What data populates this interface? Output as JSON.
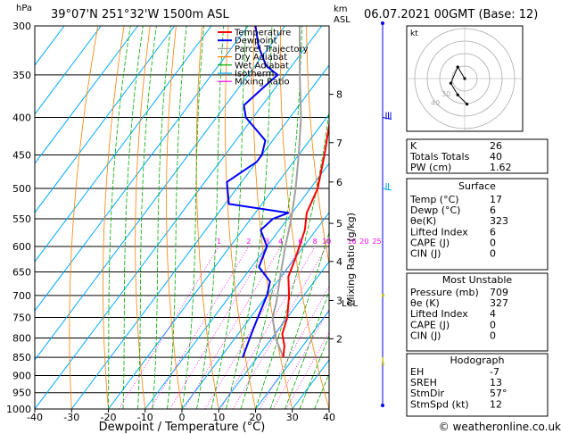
{
  "header": {
    "pressure_unit": "hPa",
    "location": "39°07'N  251°32'W  1500m  ASL",
    "height_unit": "km",
    "height_unit2": "ASL",
    "datetime": "06.07.2021  00GMT  (Base: 12)"
  },
  "legend": [
    {
      "label": "Temperature",
      "color": "#ff0000"
    },
    {
      "label": "Dewpoint",
      "color": "#0000ff"
    },
    {
      "label": "Parcel Trajectory",
      "color": "#a0a0a0"
    },
    {
      "label": "Dry Adiabat",
      "color": "#ff8000"
    },
    {
      "label": "Wet Adiabat",
      "color": "#00aa00"
    },
    {
      "label": "Isotherm",
      "color": "#00aaff"
    },
    {
      "label": "Mixing Ratio",
      "color": "#ff00ff"
    }
  ],
  "colors": {
    "temperature": "#ff0000",
    "dewpoint": "#0000ff",
    "parcel": "#a0a0a0",
    "dry_adiabat": "#ff8000",
    "wet_adiabat": "#00aa00",
    "isotherm": "#00aaff",
    "mixing_ratio": "#ff00ff",
    "wind": "#0000ff",
    "wind_barb_upper": "#0000ff",
    "wind_barb_mid": "#00aaff",
    "wind_low": "#cccc00"
  },
  "chart_data": {
    "type": "skew-t",
    "xlabel": "Dewpoint / Temperature (°C)",
    "ylabel_right": "Mixing Ratio (g/kg)",
    "xlim": [
      -40,
      40
    ],
    "ylim_hpa": [
      1000,
      300
    ],
    "x_ticks": [
      -40,
      -30,
      -20,
      -10,
      0,
      10,
      20,
      30,
      40
    ],
    "pressure_levels": [
      300,
      350,
      400,
      450,
      500,
      550,
      600,
      650,
      700,
      750,
      800,
      850,
      900,
      950,
      1000
    ],
    "km_ticks": [
      {
        "label": "8",
        "p": 372
      },
      {
        "label": "7",
        "p": 433
      },
      {
        "label": "6",
        "p": 490
      },
      {
        "label": "5",
        "p": 558
      },
      {
        "label": "4",
        "p": 629
      },
      {
        "label": "3",
        "p": 711
      },
      {
        "label": "2",
        "p": 802
      }
    ],
    "lcl": {
      "label": "LCL",
      "p": 716
    },
    "mixing_ratio_labels": [
      {
        "label": "1",
        "g": 1
      },
      {
        "label": "2",
        "g": 2
      },
      {
        "label": "3",
        "g": 3
      },
      {
        "label": "4",
        "g": 4
      },
      {
        "label": "6",
        "g": 6
      },
      {
        "label": "8",
        "g": 8
      },
      {
        "label": "10",
        "g": 10
      },
      {
        "label": "16",
        "g": 16
      },
      {
        "label": "20",
        "g": 20
      },
      {
        "label": "25",
        "g": 25
      }
    ],
    "temperature": [
      {
        "p": 850,
        "t": 17
      },
      {
        "p": 820,
        "t": 15
      },
      {
        "p": 790,
        "t": 12
      },
      {
        "p": 750,
        "t": 10
      },
      {
        "p": 700,
        "t": 6
      },
      {
        "p": 660,
        "t": 2
      },
      {
        "p": 620,
        "t": 0
      },
      {
        "p": 570,
        "t": -3
      },
      {
        "p": 540,
        "t": -6
      },
      {
        "p": 500,
        "t": -8
      },
      {
        "p": 450,
        "t": -13
      },
      {
        "p": 400,
        "t": -19
      },
      {
        "p": 350,
        "t": -27
      },
      {
        "p": 300,
        "t": -36
      }
    ],
    "dewpoint": [
      {
        "p": 850,
        "t": 6
      },
      {
        "p": 800,
        "t": 4
      },
      {
        "p": 750,
        "t": 2
      },
      {
        "p": 700,
        "t": 0
      },
      {
        "p": 670,
        "t": -2
      },
      {
        "p": 640,
        "t": -8
      },
      {
        "p": 600,
        "t": -10
      },
      {
        "p": 570,
        "t": -15
      },
      {
        "p": 550,
        "t": -14
      },
      {
        "p": 540,
        "t": -11
      },
      {
        "p": 525,
        "t": -29
      },
      {
        "p": 490,
        "t": -34
      },
      {
        "p": 460,
        "t": -30
      },
      {
        "p": 450,
        "t": -30
      },
      {
        "p": 430,
        "t": -32
      },
      {
        "p": 400,
        "t": -42
      },
      {
        "p": 385,
        "t": -45
      },
      {
        "p": 360,
        "t": -43
      },
      {
        "p": 350,
        "t": -42
      },
      {
        "p": 340,
        "t": -47
      },
      {
        "p": 320,
        "t": -53
      },
      {
        "p": 300,
        "t": -58
      }
    ],
    "parcel": [
      {
        "p": 850,
        "t": 17
      },
      {
        "p": 800,
        "t": 11
      },
      {
        "p": 750,
        "t": 6
      },
      {
        "p": 716,
        "t": 4
      },
      {
        "p": 650,
        "t": -1
      },
      {
        "p": 600,
        "t": -5
      },
      {
        "p": 550,
        "t": -9
      },
      {
        "p": 500,
        "t": -14
      },
      {
        "p": 450,
        "t": -20
      },
      {
        "p": 400,
        "t": -27
      },
      {
        "p": 350,
        "t": -36
      },
      {
        "p": 300,
        "t": -46
      }
    ],
    "hodograph": {
      "label": "kt",
      "ring_labels": [
        "40",
        "30"
      ],
      "points": [
        [
          0,
          0
        ],
        [
          -6,
          10
        ],
        [
          -12,
          -4
        ],
        [
          -6,
          -14
        ],
        [
          2,
          -22
        ]
      ]
    },
    "wind_profile_heights": [
      300,
      400,
      500,
      700,
      850
    ]
  },
  "indices": {
    "rows": [
      {
        "label": "K",
        "value": "26"
      },
      {
        "label": "Totals Totals",
        "value": "40"
      },
      {
        "label": "PW (cm)",
        "value": "1.62"
      }
    ]
  },
  "surface": {
    "title": "Surface",
    "rows": [
      {
        "label": "Temp (°C)",
        "value": "17"
      },
      {
        "label": "Dewp (°C)",
        "value": "6"
      },
      {
        "label": "θe(K)",
        "value": "323"
      },
      {
        "label": "Lifted Index",
        "value": "6"
      },
      {
        "label": "CAPE (J)",
        "value": "0"
      },
      {
        "label": "CIN (J)",
        "value": "0"
      }
    ]
  },
  "most_unstable": {
    "title": "Most Unstable",
    "rows": [
      {
        "label": "Pressure (mb)",
        "value": "709"
      },
      {
        "label": "θe (K)",
        "value": "327"
      },
      {
        "label": "Lifted Index",
        "value": "4"
      },
      {
        "label": "CAPE (J)",
        "value": "0"
      },
      {
        "label": "CIN (J)",
        "value": "0"
      }
    ]
  },
  "hodograph_table": {
    "title": "Hodograph",
    "rows": [
      {
        "label": "EH",
        "value": "-7"
      },
      {
        "label": "SREH",
        "value": "13"
      },
      {
        "label": "StmDir",
        "value": "57°"
      },
      {
        "label": "StmSpd (kt)",
        "value": "12"
      }
    ]
  },
  "footer": {
    "copyright": "© weatheronline.co.uk"
  }
}
